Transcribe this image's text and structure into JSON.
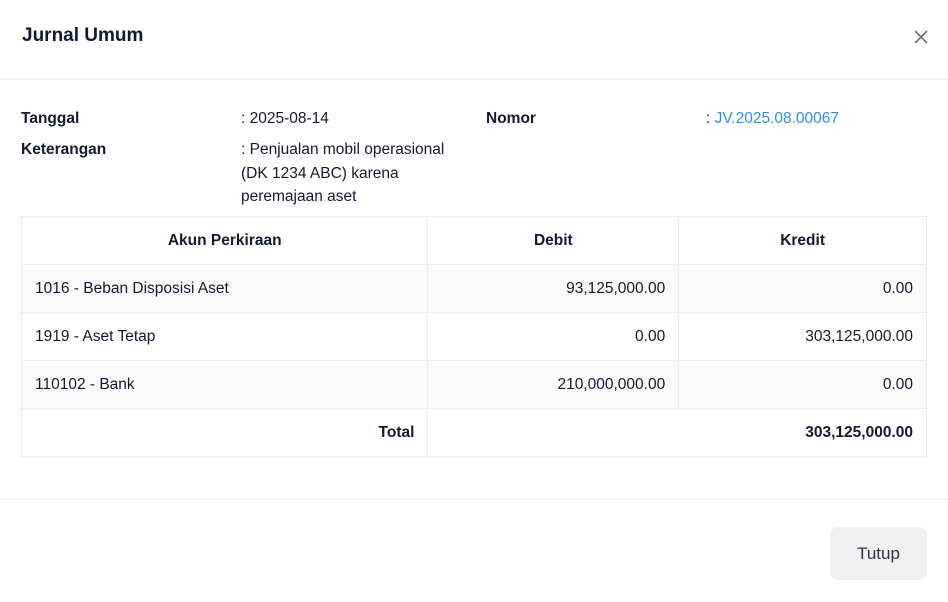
{
  "modal": {
    "title": "Jurnal Umum",
    "close_icon": "close-icon"
  },
  "info": {
    "tanggal_label": "Tanggal",
    "tanggal_value": ": 2025-08-14",
    "nomor_label": "Nomor",
    "nomor_sep": ": ",
    "nomor_value": "JV.2025.08.00067",
    "keterangan_label": "Keterangan",
    "keterangan_value": ": Penjualan mobil operasional (DK 1234 ABC) karena peremajaan aset"
  },
  "table": {
    "headers": [
      "Akun Perkiraan",
      "Debit",
      "Kredit"
    ],
    "rows": [
      {
        "akun": "1016 - Beban Disposisi Aset",
        "debit": "93,125,000.00",
        "kredit": "0.00"
      },
      {
        "akun": "1919 - Aset Tetap",
        "debit": "0.00",
        "kredit": "303,125,000.00"
      },
      {
        "akun": "110102 - Bank",
        "debit": "210,000,000.00",
        "kredit": "0.00"
      }
    ],
    "total_label": "Total",
    "total_value": "303,125,000.00"
  },
  "footer": {
    "close_label": "Tutup"
  },
  "colors": {
    "link": "#2d8cf0",
    "text": "#111a33"
  }
}
